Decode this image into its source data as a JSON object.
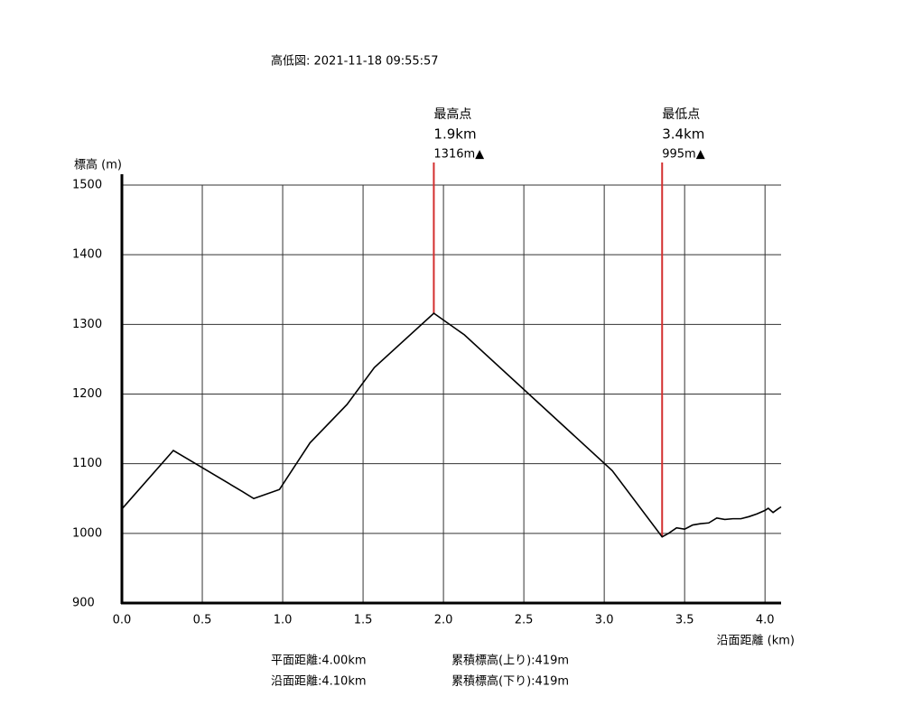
{
  "chart_data": {
    "type": "line",
    "title": "高低図: 2021-11-18 09:55:57",
    "y_label": "標高 (m)",
    "x_label": "沿面距離 (km)",
    "x": [
      0,
      0.32,
      0.75,
      0.82,
      0.98,
      1.17,
      1.4,
      1.57,
      1.94,
      2.13,
      3.05,
      3.36,
      3.4,
      3.45,
      3.5,
      3.55,
      3.6,
      3.65,
      3.7,
      3.75,
      3.8,
      3.85,
      3.9,
      3.95,
      4.0,
      4.02,
      4.05,
      4.08,
      4.1
    ],
    "series": [
      {
        "name": "標高",
        "color": "#000000",
        "values": [
          1035,
          1119,
          1060,
          1050,
          1063,
          1130,
          1185,
          1238,
          1316,
          1285,
          1090,
          995,
          1000,
          1008,
          1006,
          1012,
          1014,
          1015,
          1022,
          1020,
          1021,
          1021,
          1024,
          1028,
          1033,
          1036,
          1030,
          1035,
          1038
        ]
      }
    ],
    "xlim": [
      0,
      4.1
    ],
    "ylim": [
      900,
      1500
    ],
    "xticks": [
      {
        "value": 0,
        "label": "0.0"
      },
      0.5,
      {
        "value": 1,
        "label": "1.0"
      },
      1.5,
      {
        "value": 2,
        "label": "2.0"
      },
      2.5,
      {
        "value": 3,
        "label": "3.0"
      },
      3.5,
      {
        "value": 4,
        "label": "4.0"
      }
    ],
    "yticks": [
      900,
      1000,
      1100,
      1200,
      1300,
      1400,
      1500
    ],
    "grid": true,
    "annotations": [
      {
        "title": "最高点",
        "distance": "1.9km",
        "elevation": "1316m▲",
        "x": 1.94,
        "y": 1316,
        "color": "#d32f2f"
      },
      {
        "title": "最低点",
        "distance": "3.4km",
        "elevation": "995m▲",
        "x": 3.36,
        "y": 995,
        "color": "#d32f2f"
      }
    ],
    "stats": [
      "平面距離:4.00km",
      "累積標高(上り):419m",
      "沿面距離:4.10km",
      "累積標高(下り):419m"
    ]
  }
}
